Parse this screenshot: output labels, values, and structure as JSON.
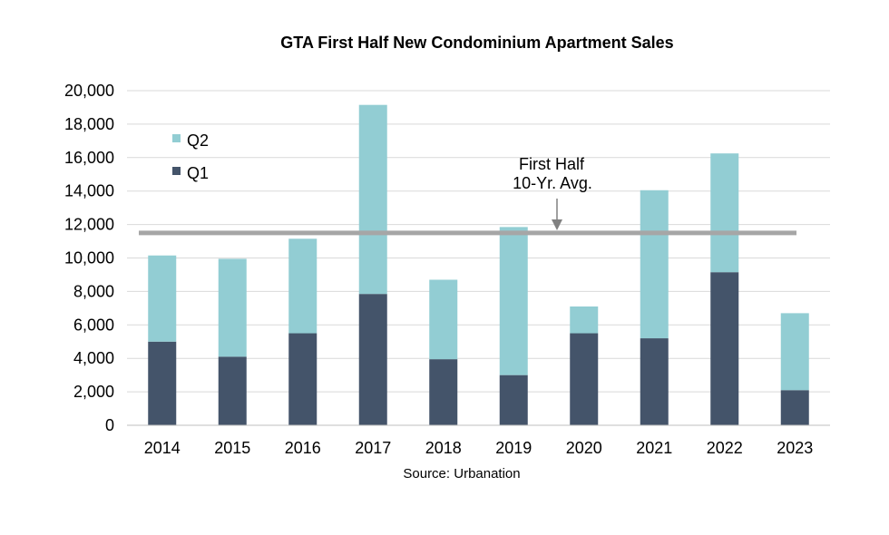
{
  "chart_data": {
    "type": "bar",
    "stacked": true,
    "title": "GTA First Half New Condominium Apartment Sales",
    "source": "Source: Urbanation",
    "categories": [
      "2014",
      "2015",
      "2016",
      "2017",
      "2018",
      "2019",
      "2020",
      "2021",
      "2022",
      "2023"
    ],
    "series": [
      {
        "name": "Q1",
        "color": "#44546a",
        "values": [
          5000,
          4100,
          5500,
          7850,
          3950,
          3000,
          5500,
          5200,
          9150,
          2100
        ]
      },
      {
        "name": "Q2",
        "color": "#92cdd3",
        "values": [
          5150,
          5850,
          5650,
          11300,
          4750,
          8850,
          1600,
          8850,
          7100,
          4600
        ]
      }
    ],
    "reference_line": {
      "value": 11500,
      "label_line1": "First Half",
      "label_line2": "10-Yr. Avg.",
      "color": "#a6a6a6"
    },
    "ylim": [
      0,
      20000
    ],
    "yticks": [
      0,
      2000,
      4000,
      6000,
      8000,
      10000,
      12000,
      14000,
      16000,
      18000,
      20000
    ],
    "ytick_labels": [
      "0",
      "2,000",
      "4,000",
      "6,000",
      "8,000",
      "10,000",
      "12,000",
      "14,000",
      "16,000",
      "18,000",
      "20,000"
    ],
    "grid": true,
    "legend_position": "top-left"
  }
}
